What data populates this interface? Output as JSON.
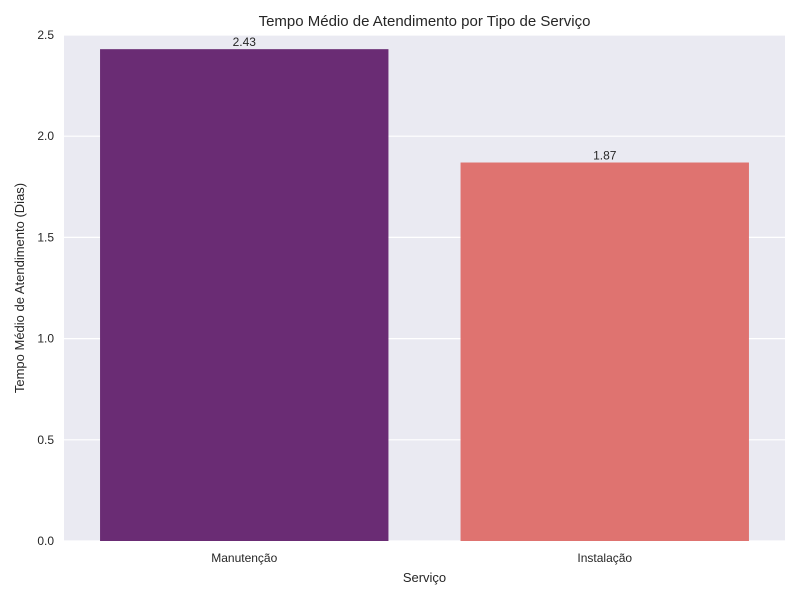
{
  "chart_data": {
    "type": "bar",
    "title": "Tempo Médio de Atendimento por Tipo de Serviço",
    "xlabel": "Serviço",
    "ylabel": "Tempo Médio de Atendimento (Dias)",
    "categories": [
      "Manutenção",
      "Instalação"
    ],
    "values": [
      2.43,
      1.87
    ],
    "value_labels": [
      "2.43",
      "1.87"
    ],
    "colors": [
      "#6a2c74",
      "#df7370"
    ],
    "ylim": [
      0,
      2.5
    ],
    "yticks": [
      0.0,
      0.5,
      1.0,
      1.5,
      2.0,
      2.5
    ],
    "ytick_labels": [
      "0.0",
      "0.5",
      "1.0",
      "1.5",
      "2.0",
      "2.5"
    ],
    "grid": true,
    "background": "#eaeaf2",
    "gridcolor": "#ffffff"
  }
}
